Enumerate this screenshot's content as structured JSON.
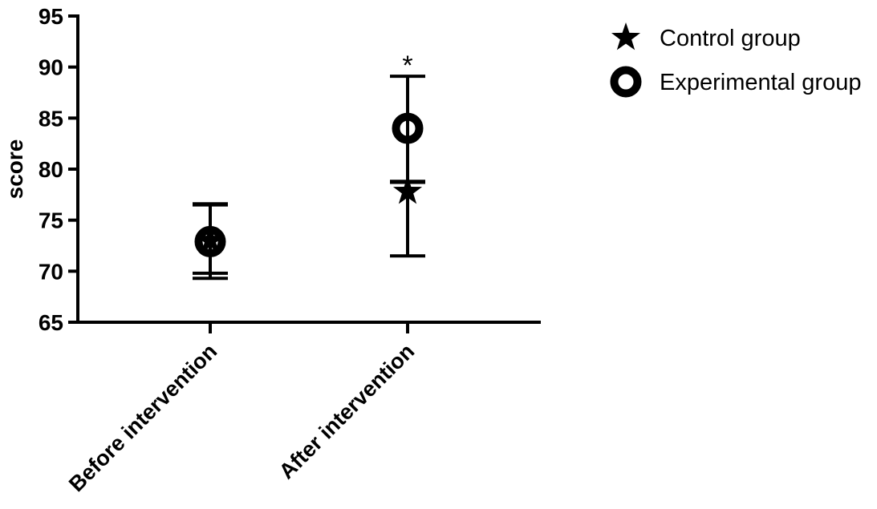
{
  "chart_data": {
    "type": "scatter",
    "title": "",
    "xlabel": "",
    "ylabel": "score",
    "ylim": [
      65,
      95
    ],
    "yticks": [
      65,
      70,
      75,
      80,
      85,
      90,
      95
    ],
    "categories": [
      "Before intervention",
      "After intervention"
    ],
    "grid": false,
    "legend_position": "top-right",
    "series": [
      {
        "name": "Control group",
        "marker": "star",
        "values": [
          73.0,
          77.8
        ],
        "error_low": [
          69.8,
          71.5
        ],
        "error_high": [
          76.5,
          78.8
        ]
      },
      {
        "name": "Experimental group",
        "marker": "ring",
        "values": [
          72.9,
          84.0
        ],
        "error_low": [
          69.3,
          78.7
        ],
        "error_high": [
          76.6,
          89.1
        ]
      }
    ],
    "annotations": [
      {
        "text": "*",
        "category": "After intervention",
        "y": 89.1
      }
    ]
  }
}
